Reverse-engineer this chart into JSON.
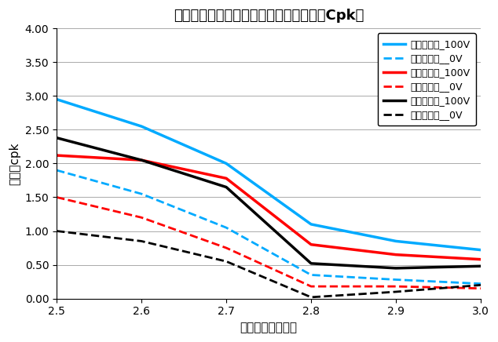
{
  "title": "マスク表面コート別＿振動効果（体積率Cpk）",
  "xlabel": "設計アスペクト比",
  "ylabel": "体積率cpk",
  "x": [
    2.5,
    2.6,
    2.7,
    2.8,
    2.9,
    3.0
  ],
  "series": [
    {
      "label": "親水コート_100V",
      "color": "#00AAFF",
      "linestyle": "solid",
      "linewidth": 2.5,
      "values": [
        2.95,
        2.55,
        2.0,
        1.1,
        0.85,
        0.72
      ]
    },
    {
      "label": "親水コート__0V",
      "color": "#00AAFF",
      "linestyle": "dashed",
      "linewidth": 2.0,
      "values": [
        1.9,
        1.55,
        1.05,
        0.35,
        0.28,
        0.22
      ]
    },
    {
      "label": "撥水コート_100V",
      "color": "#FF0000",
      "linestyle": "solid",
      "linewidth": 2.5,
      "values": [
        2.12,
        2.05,
        1.78,
        0.8,
        0.65,
        0.58
      ]
    },
    {
      "label": "撥水コート__0V",
      "color": "#FF0000",
      "linestyle": "dashed",
      "linewidth": 2.0,
      "values": [
        1.5,
        1.2,
        0.75,
        0.18,
        0.18,
        0.15
      ]
    },
    {
      "label": "コート無し_100V",
      "color": "#000000",
      "linestyle": "solid",
      "linewidth": 2.5,
      "values": [
        2.38,
        2.05,
        1.65,
        0.52,
        0.45,
        0.48
      ]
    },
    {
      "label": "コート無し__0V",
      "color": "#000000",
      "linestyle": "dashed",
      "linewidth": 2.0,
      "values": [
        1.0,
        0.85,
        0.55,
        0.02,
        0.1,
        0.2
      ]
    }
  ],
  "ylim": [
    0.0,
    4.0
  ],
  "yticks": [
    0.0,
    0.5,
    1.0,
    1.5,
    2.0,
    2.5,
    3.0,
    3.5,
    4.0
  ],
  "xlim": [
    2.5,
    3.0
  ],
  "xticks": [
    2.5,
    2.6,
    2.7,
    2.8,
    2.9,
    3.0
  ],
  "grid": true,
  "background_color": "#FFFFFF",
  "legend_fontsize": 9,
  "title_fontsize": 13,
  "axis_label_fontsize": 11,
  "tick_fontsize": 10
}
